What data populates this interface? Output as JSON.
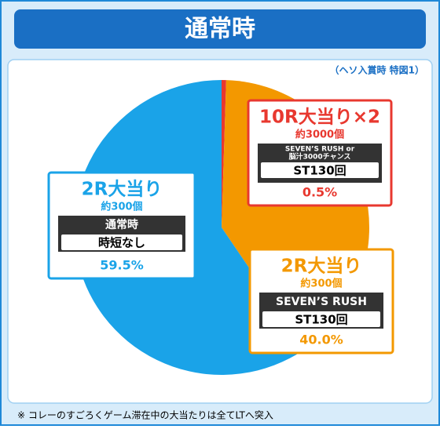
{
  "chart_data": {
    "type": "pie",
    "title": "通常時",
    "subtitle": "（ヘソ入賞時 特図1）",
    "footnote": "※ コレーのすごろくゲーム滞在中の大当たりは全てLTへ突入",
    "categories": [
      "10R大当り×2",
      "2R大当り",
      "2R大当り"
    ],
    "values": [
      0.5,
      40.0,
      59.5
    ],
    "value_labels": [
      "0.5%",
      "40.0%",
      "59.5%"
    ],
    "colors": [
      "#e8382f",
      "#f39800",
      "#1aa3e8"
    ],
    "counts": [
      "約3000個",
      "約300個",
      "約300個"
    ],
    "modes": [
      [
        "SEVEN’S RUSH or",
        "脳汁3000チャンス"
      ],
      [
        "SEVEN’S RUSH"
      ],
      [
        "通常時"
      ]
    ],
    "details": [
      "ST130回",
      "ST130回",
      "時短なし"
    ]
  }
}
